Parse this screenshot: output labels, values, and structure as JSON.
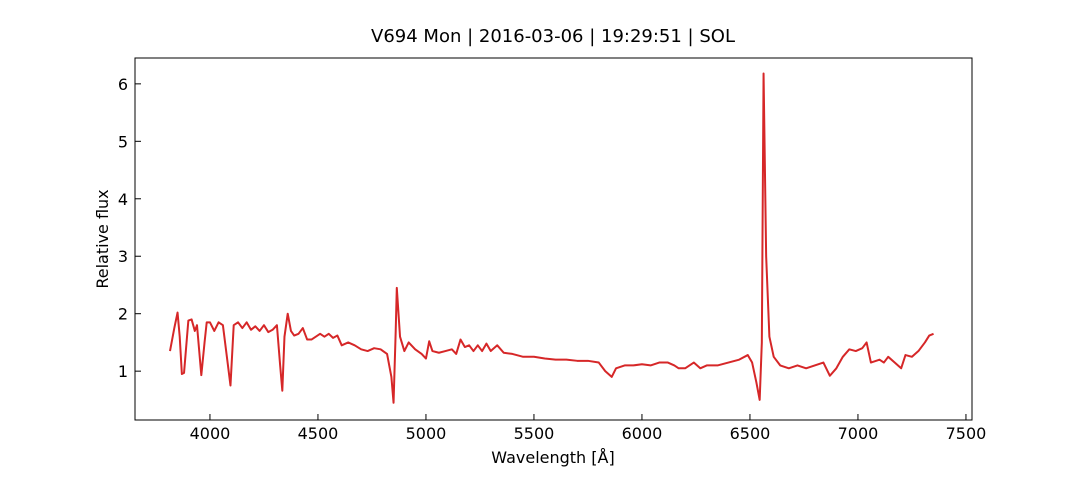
{
  "chart_data": {
    "type": "line",
    "title": "V694 Mon | 2016-03-06 | 19:29:51 | SOL",
    "x_label": "Wavelength [Å]",
    "y_label": "Relative flux",
    "xlim": [
      3653,
      7528
    ],
    "ylim": [
      0.15,
      6.45
    ],
    "xticks": [
      4000,
      4500,
      5000,
      5500,
      6000,
      6500,
      7000,
      7500
    ],
    "yticks": [
      1,
      2,
      3,
      4,
      5,
      6
    ],
    "series": [
      {
        "color": "#d62728",
        "x": [
          3815,
          3835,
          3850,
          3860,
          3870,
          3880,
          3900,
          3915,
          3930,
          3940,
          3960,
          3975,
          3985,
          4000,
          4020,
          4040,
          4060,
          4080,
          4095,
          4110,
          4130,
          4150,
          4170,
          4190,
          4210,
          4230,
          4250,
          4270,
          4290,
          4310,
          4325,
          4335,
          4345,
          4360,
          4375,
          4390,
          4410,
          4430,
          4450,
          4470,
          4490,
          4510,
          4530,
          4550,
          4570,
          4590,
          4610,
          4640,
          4670,
          4700,
          4730,
          4760,
          4790,
          4820,
          4840,
          4850,
          4860,
          4865,
          4880,
          4900,
          4920,
          4950,
          4980,
          5000,
          5015,
          5030,
          5060,
          5090,
          5120,
          5140,
          5160,
          5180,
          5200,
          5220,
          5240,
          5260,
          5280,
          5300,
          5330,
          5360,
          5400,
          5450,
          5500,
          5550,
          5600,
          5650,
          5700,
          5750,
          5800,
          5830,
          5860,
          5880,
          5920,
          5960,
          6000,
          6040,
          6080,
          6120,
          6150,
          6170,
          6200,
          6240,
          6270,
          6300,
          6350,
          6400,
          6450,
          6490,
          6510,
          6530,
          6545,
          6555,
          6563,
          6575,
          6590,
          6610,
          6640,
          6680,
          6720,
          6760,
          6800,
          6840,
          6870,
          6900,
          6930,
          6960,
          6990,
          7020,
          7040,
          7060,
          7100,
          7120,
          7140,
          7170,
          7200,
          7220,
          7250,
          7280,
          7310,
          7330,
          7350
        ],
        "values": [
          1.35,
          1.75,
          2.02,
          1.6,
          0.95,
          0.97,
          1.88,
          1.9,
          1.7,
          1.8,
          0.93,
          1.5,
          1.85,
          1.85,
          1.7,
          1.85,
          1.8,
          1.2,
          0.75,
          1.8,
          1.85,
          1.75,
          1.85,
          1.72,
          1.78,
          1.7,
          1.8,
          1.68,
          1.72,
          1.8,
          1.1,
          0.66,
          1.6,
          2.0,
          1.7,
          1.62,
          1.65,
          1.75,
          1.55,
          1.55,
          1.6,
          1.65,
          1.6,
          1.65,
          1.58,
          1.62,
          1.45,
          1.5,
          1.45,
          1.38,
          1.35,
          1.4,
          1.38,
          1.3,
          0.9,
          0.45,
          1.7,
          2.45,
          1.6,
          1.35,
          1.5,
          1.38,
          1.3,
          1.22,
          1.52,
          1.35,
          1.32,
          1.35,
          1.38,
          1.3,
          1.55,
          1.42,
          1.45,
          1.35,
          1.45,
          1.35,
          1.48,
          1.35,
          1.45,
          1.32,
          1.3,
          1.25,
          1.25,
          1.22,
          1.2,
          1.2,
          1.18,
          1.18,
          1.15,
          1.0,
          0.9,
          1.05,
          1.1,
          1.1,
          1.12,
          1.1,
          1.15,
          1.15,
          1.1,
          1.05,
          1.05,
          1.15,
          1.05,
          1.1,
          1.1,
          1.15,
          1.2,
          1.28,
          1.15,
          0.8,
          0.5,
          1.5,
          6.18,
          3.0,
          1.6,
          1.25,
          1.1,
          1.05,
          1.1,
          1.05,
          1.1,
          1.15,
          0.92,
          1.05,
          1.25,
          1.38,
          1.35,
          1.4,
          1.5,
          1.15,
          1.2,
          1.15,
          1.25,
          1.15,
          1.05,
          1.28,
          1.25,
          1.35,
          1.5,
          1.62,
          1.65
        ]
      }
    ]
  }
}
